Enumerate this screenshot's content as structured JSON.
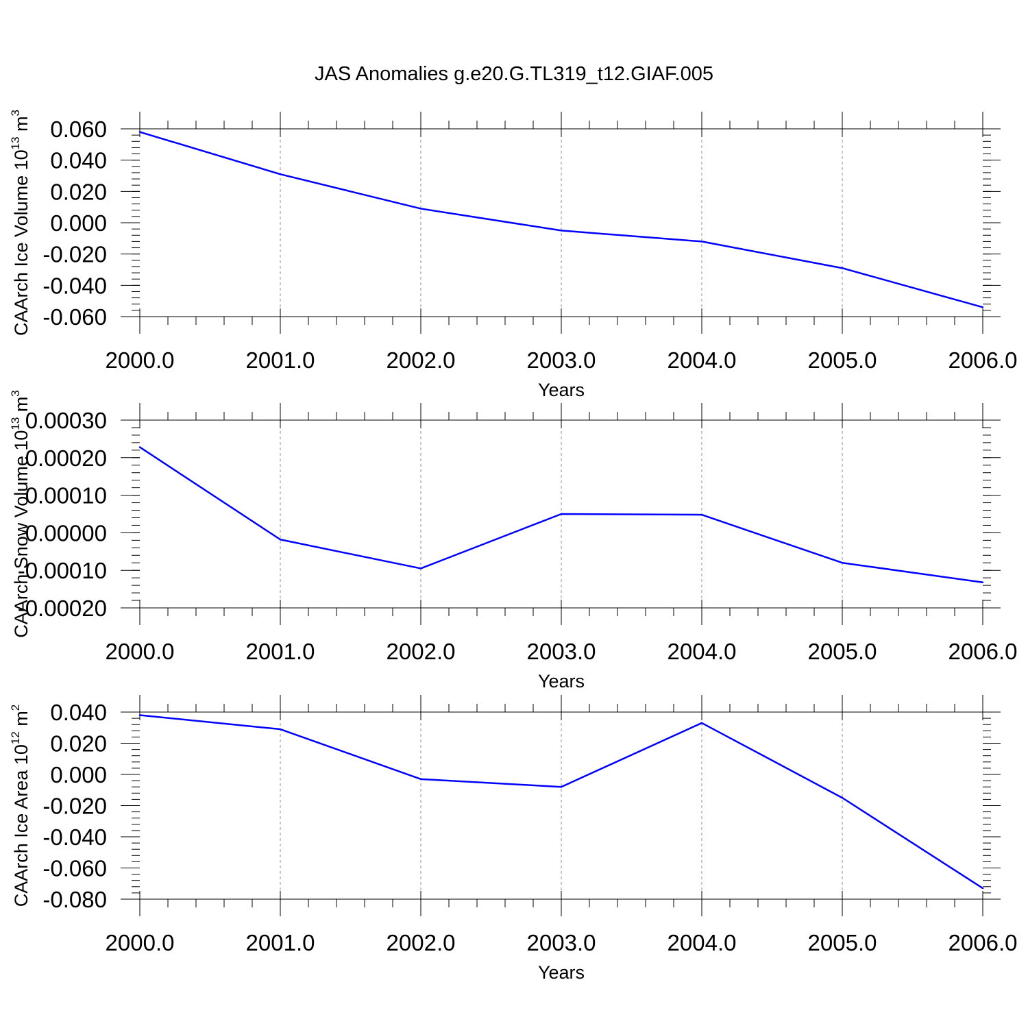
{
  "title": "JAS Anomalies g.e20.G.TL319_t12.GIAF.005",
  "colors": {
    "line": "#0000ff",
    "axis": "#000000",
    "grid": "#8c8c8c"
  },
  "chart_data": [
    {
      "type": "line",
      "title": "JAS Anomalies g.e20.G.TL319_t12.GIAF.005",
      "xlabel": "Years",
      "ylabel": {
        "text": "CAArch Ice Volume 10",
        "exp": "13",
        "unit": " m",
        "unit_exp": "3"
      },
      "x": [
        2000,
        2001,
        2002,
        2003,
        2004,
        2005,
        2006
      ],
      "xlim": [
        2000,
        2006
      ],
      "xticks": [
        "2000.0",
        "2001.0",
        "2002.0",
        "2003.0",
        "2004.0",
        "2005.0",
        "2006.0"
      ],
      "xtick_values": [
        2000,
        2001,
        2002,
        2003,
        2004,
        2005,
        2006
      ],
      "series": [
        {
          "name": "CAArch Ice Volume",
          "values": [
            0.058,
            0.031,
            0.009,
            -0.005,
            -0.012,
            -0.029,
            -0.054
          ]
        }
      ],
      "ylim": [
        -0.06,
        0.06
      ],
      "yticks": [
        "0.060",
        "0.040",
        "0.020",
        "0.000",
        "-0.020",
        "-0.040",
        "-0.060"
      ],
      "ytick_values": [
        0.06,
        0.04,
        0.02,
        0.0,
        -0.02,
        -0.04,
        -0.06
      ],
      "minor_y_step": 0.004,
      "grid": "vertical dashed"
    },
    {
      "type": "line",
      "title": "",
      "xlabel": "Years",
      "ylabel": {
        "text": "CAArch Snow Volume 10",
        "exp": "13",
        "unit": " m",
        "unit_exp": "3"
      },
      "x": [
        2000,
        2001,
        2002,
        2003,
        2004,
        2005,
        2006
      ],
      "xlim": [
        2000,
        2006
      ],
      "xticks": [
        "2000.0",
        "2001.0",
        "2002.0",
        "2003.0",
        "2004.0",
        "2005.0",
        "2006.0"
      ],
      "xtick_values": [
        2000,
        2001,
        2002,
        2003,
        2004,
        2005,
        2006
      ],
      "series": [
        {
          "name": "CAArch Snow Volume",
          "values": [
            0.000228,
            -1.8e-05,
            -9.5e-05,
            5e-05,
            4.8e-05,
            -8e-05,
            -0.000132
          ]
        }
      ],
      "ylim": [
        -0.0002,
        0.0003
      ],
      "yticks": [
        "0.00030",
        "0.00020",
        "0.00010",
        "0.00000",
        "-0.00010",
        "-0.00020"
      ],
      "ytick_values": [
        0.0003,
        0.0002,
        0.0001,
        0.0,
        -0.0001,
        -0.0002
      ],
      "minor_y_step": 2e-05,
      "grid": "vertical dashed"
    },
    {
      "type": "line",
      "title": "",
      "xlabel": "Years",
      "ylabel": {
        "text": "CAArch Ice Area 10",
        "exp": "12",
        "unit": " m",
        "unit_exp": "2"
      },
      "x": [
        2000,
        2001,
        2002,
        2003,
        2004,
        2005,
        2006
      ],
      "xlim": [
        2000,
        2006
      ],
      "xticks": [
        "2000.0",
        "2001.0",
        "2002.0",
        "2003.0",
        "2004.0",
        "2005.0",
        "2006.0"
      ],
      "xtick_values": [
        2000,
        2001,
        2002,
        2003,
        2004,
        2005,
        2006
      ],
      "series": [
        {
          "name": "CAArch Ice Area",
          "values": [
            0.038,
            0.029,
            -0.003,
            -0.008,
            0.033,
            -0.015,
            -0.073
          ]
        }
      ],
      "ylim": [
        -0.08,
        0.04
      ],
      "yticks": [
        "0.040",
        "0.020",
        "0.000",
        "-0.020",
        "-0.040",
        "-0.060",
        "-0.080"
      ],
      "ytick_values": [
        0.04,
        0.02,
        0.0,
        -0.02,
        -0.04,
        -0.06,
        -0.08
      ],
      "minor_y_step": 0.004,
      "grid": "vertical dashed"
    }
  ]
}
